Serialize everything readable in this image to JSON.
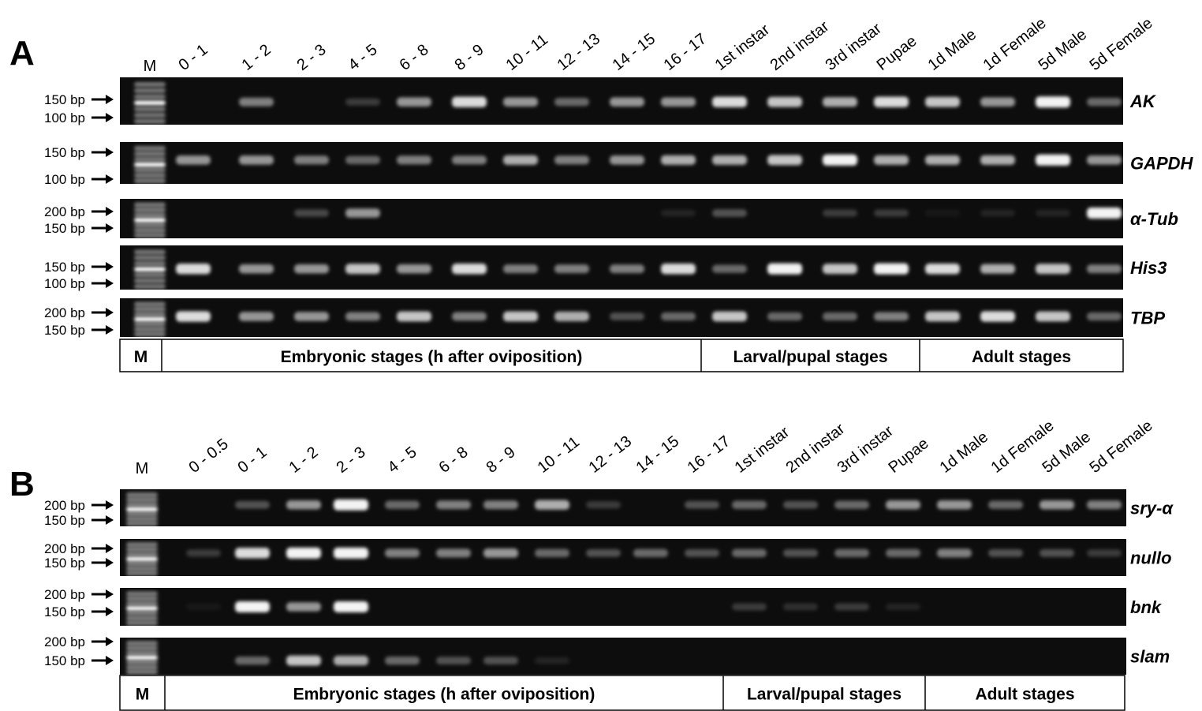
{
  "panels": [
    {
      "label": "A",
      "marker": "M",
      "lanes": [
        "0 - 1",
        "1 - 2",
        "2 - 3",
        "4 - 5",
        "6 - 8",
        "8 - 9",
        "10 - 11",
        "12 - 13",
        "14 - 15",
        "16 - 17",
        "1st instar",
        "2nd instar",
        "3rd instar",
        "Pupae",
        "1d Male",
        "1d Female",
        "5d Male",
        "5d Female"
      ],
      "genes": [
        {
          "name": "AK",
          "sizes": [
            "150 bp",
            "100 bp"
          ]
        },
        {
          "name": "GAPDH",
          "sizes": [
            "150 bp",
            "100 bp"
          ]
        },
        {
          "name": "α-Tub",
          "sizes": [
            "200 bp",
            "150 bp"
          ]
        },
        {
          "name": "His3",
          "sizes": [
            "150 bp",
            "100 bp"
          ]
        },
        {
          "name": "TBP",
          "sizes": [
            "200 bp",
            "150 bp"
          ]
        }
      ],
      "footer": [
        "M",
        "Embryonic stages (h after oviposition)",
        "Larval/pupal stages",
        "Adult stages"
      ]
    },
    {
      "label": "B",
      "marker": "M",
      "lanes": [
        "0 - 0.5",
        "0 - 1",
        "1 - 2",
        "2 - 3",
        "4 - 5",
        "6 - 8",
        "8 - 9",
        "10 - 11",
        "12 - 13",
        "14 - 15",
        "16 - 17",
        "1st instar",
        "2nd instar",
        "3rd instar",
        "Pupae",
        "1d Male",
        "1d Female",
        "5d Male",
        "5d Female"
      ],
      "genes": [
        {
          "name": "sry-α",
          "sizes": [
            "200 bp",
            "150 bp"
          ]
        },
        {
          "name": "nullo",
          "sizes": [
            "200 bp",
            "150 bp"
          ]
        },
        {
          "name": "bnk",
          "sizes": [
            "200 bp",
            "150 bp"
          ]
        },
        {
          "name": "slam",
          "sizes": [
            "200 bp",
            "150 bp"
          ]
        }
      ],
      "footer": [
        "M",
        "Embryonic stages (h after oviposition)",
        "Larval/pupal stages",
        "Adult stages"
      ]
    }
  ]
}
